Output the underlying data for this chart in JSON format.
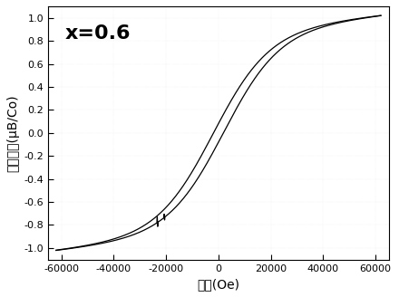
{
  "title_text": "x=0.6",
  "xlabel": "磁场(Oe)",
  "ylabel": "磁化强度(μB/Co)",
  "xlim": [
    -65000,
    65000
  ],
  "ylim": [
    -1.1,
    1.1
  ],
  "xticks": [
    -60000,
    -40000,
    -20000,
    0,
    20000,
    40000,
    60000
  ],
  "yticks": [
    -1.0,
    -0.8,
    -0.6,
    -0.4,
    -0.2,
    0.0,
    0.2,
    0.4,
    0.6,
    0.8,
    1.0
  ],
  "background_color": "#ffffff",
  "line_color": "#000000",
  "figsize": [
    4.4,
    3.28
  ],
  "dpi": 100
}
